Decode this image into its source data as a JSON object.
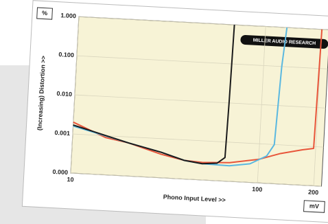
{
  "chart_data": {
    "type": "line",
    "y_label": "(Increasing) Distortion >>",
    "x_label": "Phono Input Level >>",
    "y_unit": "%",
    "x_unit": "mV",
    "annotation": "MILLER AUDIO RESEARCH",
    "x_log": true,
    "y_log": true,
    "grid": true,
    "xlim": [
      10,
      220
    ],
    "ylim": [
      0.0001,
      1
    ],
    "xticks": [
      10,
      100,
      200
    ],
    "yticks": [
      {
        "value": 0.0001,
        "label": "0.000"
      },
      0.001,
      {
        "value": 0.01,
        "label": "0.010"
      },
      {
        "value": 0.1,
        "label": "0.100"
      },
      {
        "value": 1,
        "label": "1.000"
      }
    ],
    "series": [
      {
        "color": "#e8553a",
        "x": [
          10,
          15,
          20,
          30,
          40,
          50,
          70,
          100,
          130,
          170,
          195,
          200
        ],
        "values": [
          0.002,
          0.0009,
          0.0007,
          0.0004,
          0.0003,
          0.00028,
          0.0003,
          0.0004,
          0.0006,
          0.0008,
          0.0009,
          1
        ]
      },
      {
        "color": "#5ab8e0",
        "x": [
          10,
          20,
          30,
          40,
          50,
          70,
          90,
          110,
          120,
          125,
          130
        ],
        "values": [
          0.0016,
          0.0007,
          0.00045,
          0.0003,
          0.00026,
          0.00025,
          0.0003,
          0.0005,
          0.001,
          0.1,
          1
        ]
      },
      {
        "color": "#1a1a1a",
        "x": [
          10,
          20,
          30,
          40,
          50,
          60,
          66,
          67,
          68
        ],
        "values": [
          0.0017,
          0.0007,
          0.00045,
          0.0003,
          0.00026,
          0.00028,
          0.0004,
          0.01,
          1
        ]
      }
    ]
  }
}
